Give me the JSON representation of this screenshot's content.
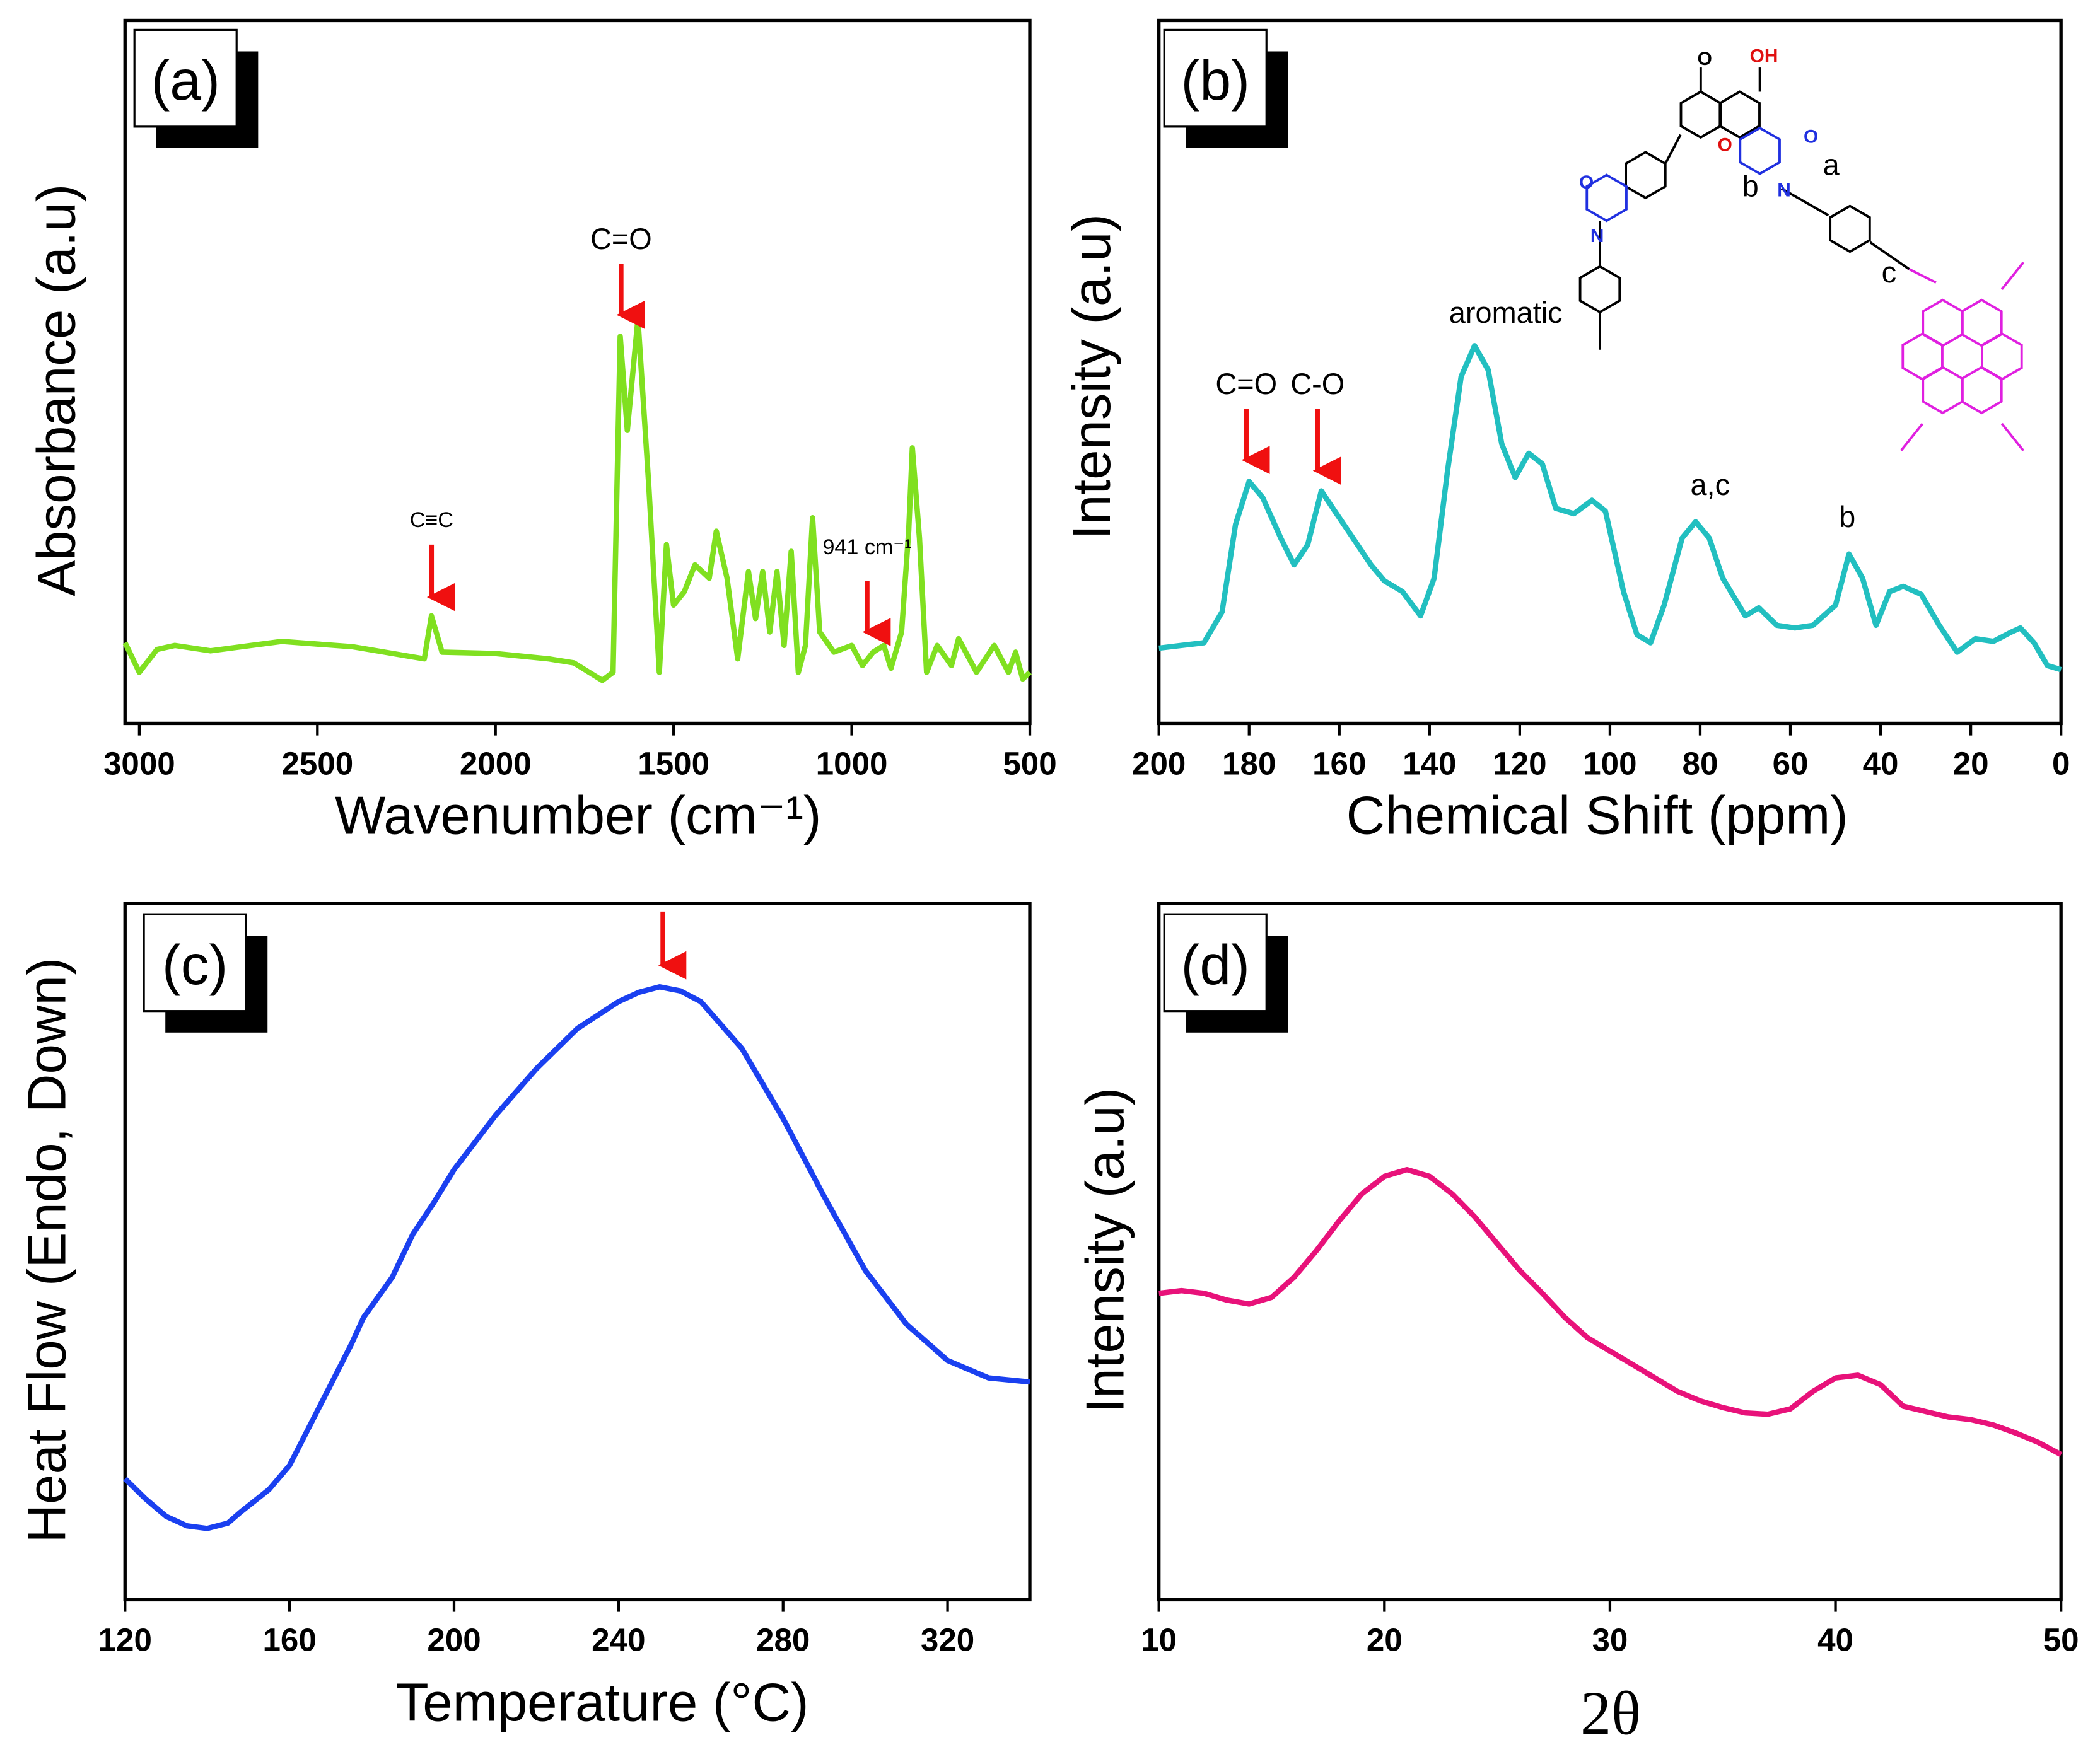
{
  "chart_data": [
    {
      "type": "line",
      "panel_label": "(a)",
      "xlabel": "Wavenumber (cm⁻¹)",
      "ylabel": "Absorbance (a.u)",
      "xlim": [
        3040,
        500
      ],
      "xticks": [
        3000,
        2500,
        2000,
        1500,
        1000,
        500
      ],
      "ylim": [
        0,
        523
      ],
      "color": "#80e020",
      "x": [
        3040,
        3000,
        2950,
        2900,
        2800,
        2600,
        2400,
        2200,
        2180,
        2150,
        2000,
        1850,
        1780,
        1700,
        1670,
        1650,
        1630,
        1600,
        1570,
        1540,
        1520,
        1500,
        1470,
        1440,
        1400,
        1380,
        1350,
        1320,
        1290,
        1270,
        1250,
        1230,
        1210,
        1190,
        1170,
        1150,
        1130,
        1110,
        1090,
        1050,
        1000,
        970,
        940,
        910,
        890,
        860,
        840,
        830,
        810,
        790,
        760,
        720,
        700,
        650,
        600,
        560,
        540,
        520,
        500
      ],
      "values": [
        60,
        38,
        55,
        58,
        54,
        61,
        57,
        48,
        80,
        53,
        52,
        48,
        45,
        32,
        38,
        288,
        218,
        301,
        178,
        38,
        133,
        88,
        98,
        118,
        108,
        143,
        108,
        48,
        113,
        78,
        113,
        68,
        113,
        58,
        128,
        38,
        58,
        153,
        68,
        53,
        58,
        43,
        53,
        58,
        41,
        68,
        143,
        205,
        138,
        38,
        58,
        43,
        63,
        38,
        58,
        38,
        53,
        33,
        38
      ],
      "annotations": [
        "C≡C",
        "C=O",
        "941 cm⁻¹"
      ]
    },
    {
      "type": "line",
      "panel_label": "(b)",
      "xlabel": "Chemical Shift (ppm)",
      "ylabel": "Intensity (a.u)",
      "xlim": [
        200,
        0
      ],
      "xticks": [
        200,
        180,
        160,
        140,
        120,
        100,
        80,
        60,
        40,
        20,
        0
      ],
      "ylim": [
        0,
        523
      ],
      "color": "#22bfc0",
      "x": [
        200,
        195,
        190,
        186,
        183,
        180,
        177,
        173,
        170,
        167,
        164,
        161,
        157,
        153,
        150,
        146,
        142,
        139,
        136,
        133,
        130,
        127,
        124,
        121,
        118,
        115,
        112,
        108,
        104,
        101,
        97,
        94,
        91,
        88,
        84,
        81,
        78,
        75,
        70,
        67,
        63,
        59,
        55,
        50,
        47,
        44,
        41,
        38,
        35,
        31,
        27,
        23,
        19,
        15,
        11,
        9,
        6,
        3,
        0
      ],
      "values": [
        56,
        58,
        60,
        83,
        148,
        180,
        168,
        138,
        118,
        133,
        173,
        158,
        138,
        118,
        106,
        98,
        80,
        108,
        188,
        258,
        281,
        263,
        208,
        183,
        201,
        193,
        160,
        156,
        166,
        158,
        98,
        66,
        60,
        88,
        138,
        150,
        138,
        108,
        80,
        86,
        73,
        71,
        73,
        88,
        126,
        108,
        73,
        98,
        102,
        96,
        73,
        53,
        63,
        61,
        68,
        71,
        60,
        43,
        40
      ],
      "annotations": [
        "C=O",
        "C-O",
        "aromatic",
        "a,c",
        "b"
      ],
      "structure_labels": [
        "O",
        "OH",
        "O",
        "O",
        "N",
        "O",
        "N",
        "a",
        "b",
        "c"
      ]
    },
    {
      "type": "line",
      "panel_label": "(c)",
      "xlabel": "Temperature (°C)",
      "ylabel": "Heat Flow (Endo, Down)",
      "xlim": [
        120,
        340
      ],
      "xticks": [
        120,
        160,
        200,
        240,
        280,
        320
      ],
      "ylim": [
        0,
        518
      ],
      "color": "#1a40f0",
      "x": [
        120,
        125,
        130,
        135,
        140,
        145,
        148,
        155,
        160,
        165,
        170,
        175,
        178,
        185,
        190,
        195,
        200,
        210,
        220,
        230,
        240,
        245,
        250,
        255,
        260,
        270,
        280,
        290,
        300,
        310,
        320,
        330,
        340
      ],
      "values": [
        90,
        75,
        62,
        55,
        53,
        57,
        65,
        82,
        100,
        130,
        160,
        190,
        210,
        240,
        272,
        295,
        320,
        360,
        395,
        425,
        445,
        452,
        456,
        453,
        445,
        410,
        358,
        300,
        245,
        205,
        178,
        165,
        162
      ]
    },
    {
      "type": "line",
      "panel_label": "(d)",
      "xlabel": "2θ",
      "ylabel": "Intensity (a.u)",
      "xlim": [
        10,
        50
      ],
      "xticks": [
        10,
        20,
        30,
        40,
        50
      ],
      "ylim": [
        0,
        518
      ],
      "color": "#e8127a",
      "x": [
        10,
        11,
        12,
        13,
        14,
        15,
        16,
        17,
        18,
        19,
        20,
        21,
        22,
        23,
        24,
        25,
        26,
        27,
        28,
        29,
        30,
        31,
        32,
        33,
        34,
        35,
        36,
        37,
        38,
        39,
        40,
        41,
        42,
        43,
        44,
        45,
        46,
        47,
        48,
        49,
        50
      ],
      "values": [
        228,
        230,
        228,
        223,
        220,
        225,
        240,
        260,
        282,
        302,
        315,
        320,
        315,
        302,
        285,
        265,
        245,
        228,
        210,
        195,
        185,
        175,
        165,
        155,
        148,
        143,
        139,
        138,
        142,
        155,
        165,
        167,
        160,
        144,
        140,
        136,
        134,
        130,
        124,
        117,
        108
      ]
    }
  ]
}
